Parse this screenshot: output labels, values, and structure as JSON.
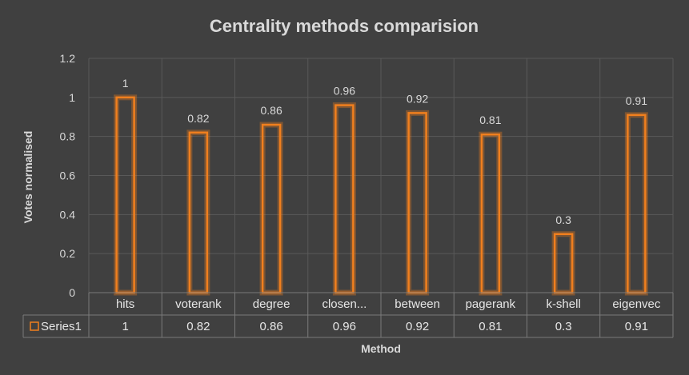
{
  "chart_data": {
    "type": "bar",
    "title": "Centrality methods comparision",
    "xlabel": "Method",
    "ylabel": "Votes normalised",
    "categories": [
      "hits",
      "voterank",
      "degree",
      "closen...",
      "between",
      "pagerank",
      "k-shell",
      "eigenvec"
    ],
    "series": [
      {
        "name": "Series1",
        "values": [
          1,
          0.82,
          0.86,
          0.96,
          0.92,
          0.81,
          0.3,
          0.91
        ]
      }
    ],
    "data_labels": [
      "1",
      "0.82",
      "0.86",
      "0.96",
      "0.92",
      "0.81",
      "0.3",
      "0.91"
    ],
    "ylim": [
      0,
      1.2
    ],
    "yticks": [
      "0",
      "0.2",
      "0.4",
      "0.6",
      "0.8",
      "1",
      "1.2"
    ],
    "grid": true,
    "legend": "data-table",
    "colors": {
      "background": "#404040",
      "bar": "#f07f1e",
      "text": "#d9d9d9",
      "grid": "#595959"
    }
  }
}
